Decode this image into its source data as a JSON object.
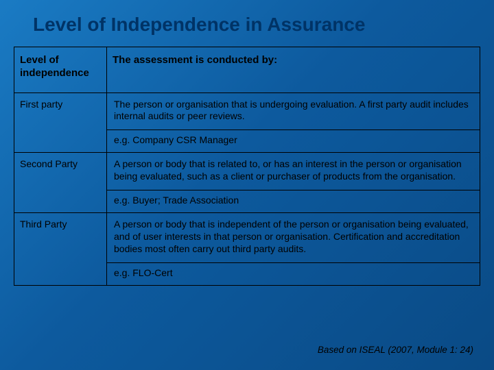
{
  "title": "Level of Independence in Assurance",
  "table": {
    "header": {
      "col1": "Level of independence",
      "col2": "The assessment is conducted by:"
    },
    "rows": [
      {
        "level": "First party",
        "desc": "The person or organisation that is undergoing evaluation. A first party audit includes internal audits or peer reviews.",
        "eg": "e.g. Company CSR Manager"
      },
      {
        "level": "Second Party",
        "desc": "A person or body that is related to, or has an interest in the person or organisation being evaluated, such as a client or purchaser of products from the organisation.",
        "eg": "e.g. Buyer; Trade Association"
      },
      {
        "level": "Third Party",
        "desc": "A person or body that is independent of the person or organisation being evaluated, and of user interests in that person or organisation. Certification and accreditation bodies most often carry out third party audits.",
        "eg": "e.g. FLO-Cert"
      }
    ]
  },
  "footnote": "Based on ISEAL (2007, Module 1: 24)",
  "colors": {
    "bg_gradient_start": "#1a7bc4",
    "bg_gradient_end": "#0a4a85",
    "title_color": "#003366",
    "border_color": "#000000",
    "text_color": "#000000"
  },
  "typography": {
    "title_fontsize": 28,
    "header_fontsize": 15,
    "body_fontsize": 14,
    "footnote_fontsize": 13.5,
    "font_family": "Arial"
  },
  "layout": {
    "slide_width": 720,
    "slide_height": 540,
    "col_level_width": 135
  }
}
